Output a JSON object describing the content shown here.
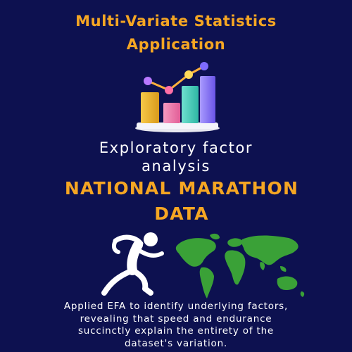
{
  "title": {
    "line1": "Multi-Variate Statistics",
    "line2": "Application"
  },
  "subtitle": {
    "line1": "Exploratory factor",
    "line2": "analysis"
  },
  "heading": {
    "line1": "NATIONAL MARATHON",
    "line2": "DATA"
  },
  "description": {
    "line1": "Applied EFA to identify underlying factors,",
    "line2": "revealing that speed and endurance",
    "line3": "succinctly explain the entirety of the",
    "line4": "dataset's variation."
  },
  "icons": {
    "chart": "bar-chart-with-trend-line-icon",
    "runner": "running-person-icon",
    "map": "world-map-icon"
  },
  "colors": {
    "background": "#0d1150",
    "accent": "#f5a623",
    "text": "#ffffff",
    "map": "#3aa137"
  }
}
